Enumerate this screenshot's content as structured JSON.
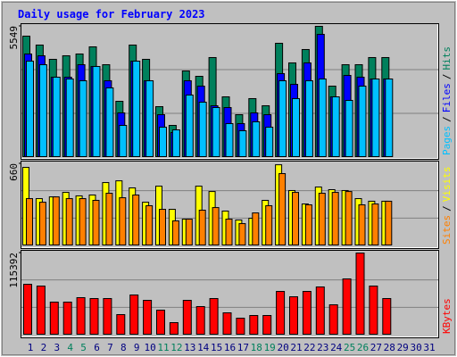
{
  "chart_data": [
    {
      "type": "bar",
      "title": "Daily usage for February 2023",
      "ylim": [
        0,
        5549
      ],
      "yticks": [
        5549
      ],
      "legend_separator": "/",
      "series": [
        {
          "name": "Pages",
          "color": "#00c0ff",
          "values": [
            4077,
            3926,
            3398,
            3322,
            3247,
            3851,
            2945,
            1359,
            4077,
            3247,
            1284,
            1170,
            2643,
            2341,
            2114,
            1435,
            1133,
            1510,
            1284,
            3247,
            2492,
            3247,
            3322,
            2567,
            2416,
            3020,
            3322,
            3322,
            null,
            null,
            null
          ]
        },
        {
          "name": "Files",
          "color": "#0000ff",
          "values": [
            4379,
            4304,
            3398,
            3398,
            3926,
            3851,
            3247,
            1888,
            4077,
            3247,
            1812,
            1057,
            3247,
            3020,
            2190,
            2114,
            1435,
            1888,
            1812,
            3549,
            3096,
            4002,
            5210,
            2567,
            3473,
            3398,
            3322,
            3322,
            null,
            null,
            null
          ]
        },
        {
          "name": "Hits",
          "color": "#00805c",
          "values": [
            5134,
            4757,
            4153,
            4304,
            4379,
            4681,
            3926,
            2378,
            4757,
            4153,
            2152,
            1359,
            3662,
            3435,
            4228,
            2567,
            1812,
            2492,
            2190,
            4832,
            4002,
            4568,
            5549,
            3020,
            3926,
            3926,
            4228,
            4228,
            null,
            null,
            null
          ]
        }
      ]
    },
    {
      "type": "bar",
      "ylim": [
        0,
        660
      ],
      "yticks": [
        660
      ],
      "legend_separator": "/",
      "series": [
        {
          "name": "Sites",
          "color": "#ff8000",
          "values": [
            380,
            351,
            394,
            380,
            380,
            366,
            423,
            387,
            409,
            323,
            294,
            201,
            215,
            287,
            308,
            215,
            179,
            265,
            323,
            581,
            430,
            330,
            423,
            430,
            437,
            330,
            337,
            359,
            null,
            null,
            null
          ]
        },
        {
          "name": "Visits",
          "color": "#ffff00",
          "values": [
            631,
            380,
            394,
            430,
            402,
            409,
            509,
            523,
            466,
            351,
            480,
            294,
            215,
            480,
            437,
            280,
            208,
            222,
            366,
            652,
            445,
            337,
            473,
            452,
            445,
            380,
            359,
            359,
            null,
            null,
            null
          ]
        }
      ]
    },
    {
      "type": "bar",
      "ylim": [
        0,
        115392
      ],
      "yticks": [
        115392
      ],
      "categories": [
        "1",
        "2",
        "3",
        "4",
        "5",
        "6",
        "7",
        "8",
        "9",
        "10",
        "11",
        "12",
        "13",
        "14",
        "15",
        "16",
        "17",
        "18",
        "19",
        "20",
        "21",
        "22",
        "23",
        "24",
        "25",
        "26",
        "27",
        "28",
        "29",
        "30",
        "31"
      ],
      "category_color": "#000080",
      "highlight_categories": [
        "4",
        "5",
        "11",
        "12",
        "18",
        "19",
        "25",
        "26"
      ],
      "highlight_color": "#00805c",
      "series": [
        {
          "name": "KBytes",
          "color": "#ff0000",
          "values": [
            71478,
            68970,
            46398,
            46398,
            52668,
            51414,
            51414,
            28842,
            56430,
            48906,
            35112,
            17556,
            48906,
            40128,
            51414,
            31350,
            23826,
            27588,
            27588,
            61446,
            53922,
            61446,
            67716,
            42636,
            79002,
            115392,
            68970,
            51414,
            null,
            null,
            null
          ]
        }
      ]
    }
  ]
}
